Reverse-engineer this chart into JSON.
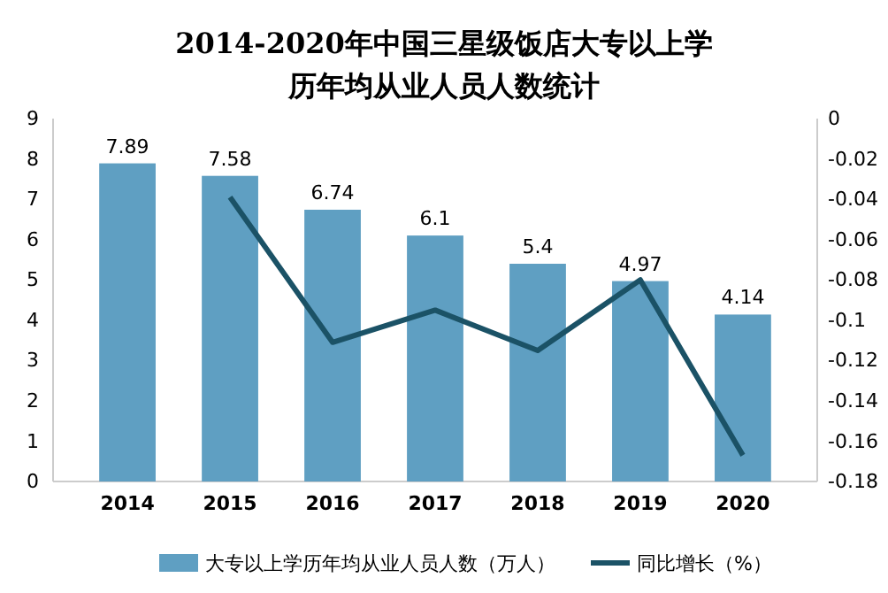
{
  "chart_data": {
    "type": "bar",
    "title": "2014-2020年中国三星级饭店大专以上学历年均从业人员人数统计",
    "categories": [
      "2014",
      "2015",
      "2016",
      "2017",
      "2018",
      "2019",
      "2020"
    ],
    "series": [
      {
        "name": "大专以上学历年均从业人员人数（万人）",
        "color": "#5f9fc2",
        "values": [
          7.89,
          7.58,
          6.74,
          6.1,
          5.4,
          4.97,
          4.14
        ],
        "value_labels": [
          "7.89",
          "7.58",
          "6.74",
          "6.1",
          "5.4",
          "4.97",
          "4.14"
        ]
      },
      {
        "name": "同比增长（%）",
        "type": "line",
        "axis": "y2",
        "color": "#1b5266",
        "values": [
          null,
          -0.039,
          -0.111,
          -0.095,
          -0.115,
          -0.08,
          -0.167
        ]
      }
    ],
    "ylim": [
      0,
      9
    ],
    "yticks": [
      0,
      1,
      2,
      3,
      4,
      5,
      6,
      7,
      8,
      9
    ],
    "y2lim": [
      -0.18,
      0
    ],
    "y2ticks": [
      -0.18,
      -0.16,
      -0.14,
      -0.12,
      -0.1,
      -0.08,
      -0.06,
      -0.04,
      -0.02,
      0
    ],
    "grid": false,
    "legend": "bottom",
    "marker": "none",
    "line_style": "solid"
  }
}
